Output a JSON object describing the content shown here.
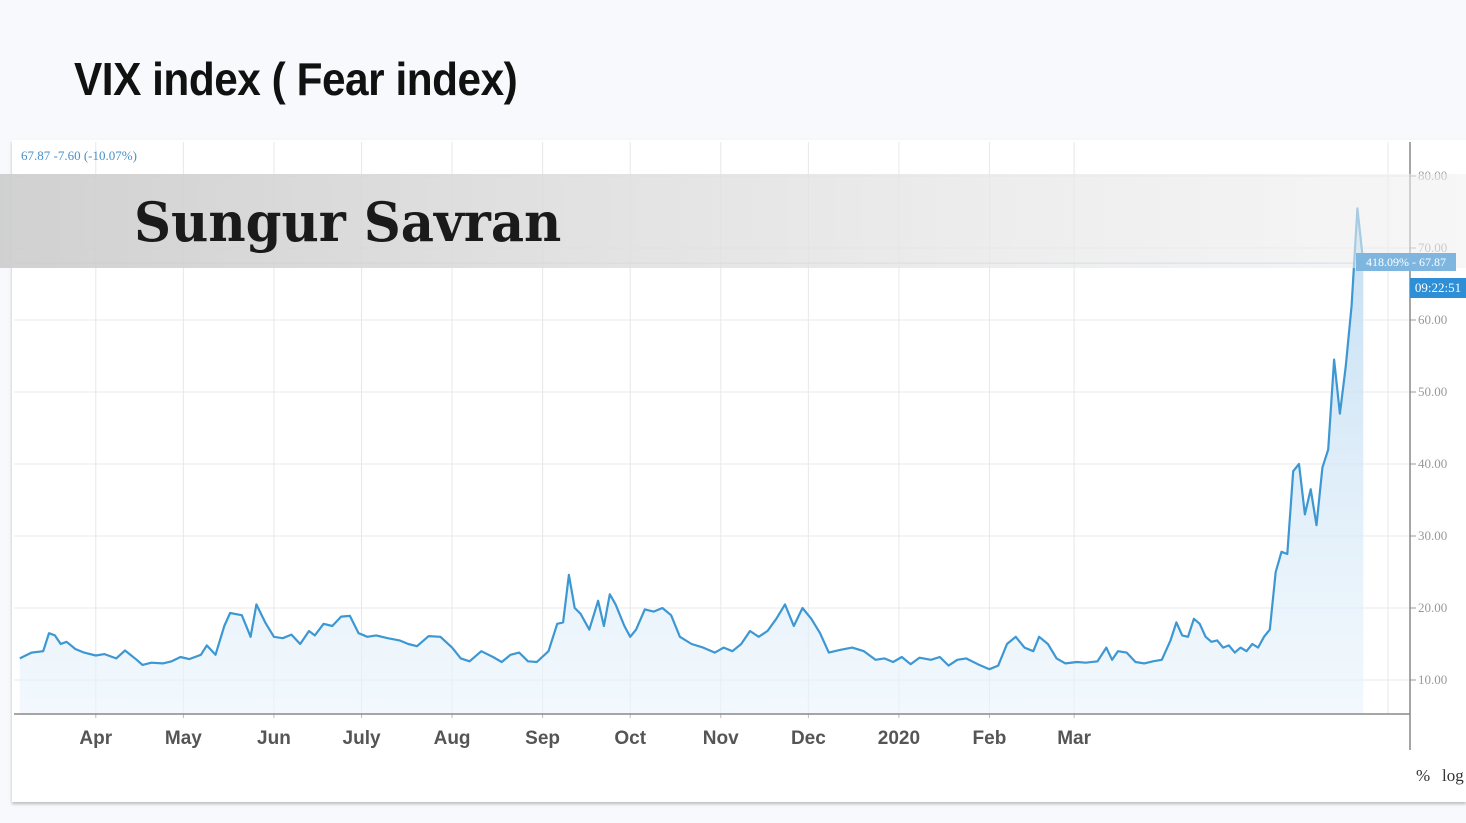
{
  "slide": {
    "title": "VIX index ( Fear index)"
  },
  "watermark": {
    "text": "Sungur Savran"
  },
  "quote": {
    "line": "67.87 -7.60 (-10.07%)"
  },
  "price_tag": {
    "value": "418.09% - 67.87",
    "time": "09:22:51"
  },
  "scale_buttons": {
    "percent": "%",
    "log": "log"
  },
  "colors": {
    "line": "#3d97d3",
    "fill": "#cfe4f5",
    "banner": "#d6d6d6",
    "grid": "#e8e8e8"
  },
  "chart_data": {
    "type": "area",
    "title": "",
    "xlabel": "",
    "ylabel": "",
    "ylim": [
      5,
      85
    ],
    "yticks": [
      "10.00",
      "20.00",
      "30.00",
      "40.00",
      "50.00",
      "60.00",
      "70.00",
      "80.00"
    ],
    "xticks": [
      {
        "label": "Apr",
        "date": "2019-04-01"
      },
      {
        "label": "May",
        "date": "2019-05-01"
      },
      {
        "label": "Jun",
        "date": "2019-06-01"
      },
      {
        "label": "July",
        "date": "2019-07-01"
      },
      {
        "label": "Aug",
        "date": "2019-08-01"
      },
      {
        "label": "Sep",
        "date": "2019-09-01"
      },
      {
        "label": "Oct",
        "date": "2019-10-01"
      },
      {
        "label": "Nov",
        "date": "2019-11-01"
      },
      {
        "label": "Dec",
        "date": "2019-12-01"
      },
      {
        "label": "2020",
        "date": "2020-01-01"
      },
      {
        "label": "Feb",
        "date": "2020-02-01"
      },
      {
        "label": "Mar",
        "date": "2020-03-01"
      }
    ],
    "grid": true,
    "series": [
      {
        "name": "",
        "points": [
          [
            "2019-03-06",
            13.0
          ],
          [
            "2019-03-10",
            13.8
          ],
          [
            "2019-03-14",
            14.0
          ],
          [
            "2019-03-16",
            16.5
          ],
          [
            "2019-03-18",
            16.2
          ],
          [
            "2019-03-20",
            15.0
          ],
          [
            "2019-03-22",
            15.3
          ],
          [
            "2019-03-25",
            14.3
          ],
          [
            "2019-03-28",
            13.8
          ],
          [
            "2019-04-01",
            13.4
          ],
          [
            "2019-04-04",
            13.6
          ],
          [
            "2019-04-08",
            13.0
          ],
          [
            "2019-04-11",
            14.1
          ],
          [
            "2019-04-15",
            12.8
          ],
          [
            "2019-04-17",
            12.1
          ],
          [
            "2019-04-20",
            12.4
          ],
          [
            "2019-04-24",
            12.3
          ],
          [
            "2019-04-27",
            12.6
          ],
          [
            "2019-04-30",
            13.2
          ],
          [
            "2019-05-03",
            12.9
          ],
          [
            "2019-05-07",
            13.5
          ],
          [
            "2019-05-09",
            14.8
          ],
          [
            "2019-05-12",
            13.5
          ],
          [
            "2019-05-15",
            17.5
          ],
          [
            "2019-05-17",
            19.3
          ],
          [
            "2019-05-21",
            19.0
          ],
          [
            "2019-05-24",
            16.0
          ],
          [
            "2019-05-26",
            20.5
          ],
          [
            "2019-05-29",
            18.0
          ],
          [
            "2019-06-01",
            16.0
          ],
          [
            "2019-06-04",
            15.8
          ],
          [
            "2019-06-07",
            16.3
          ],
          [
            "2019-06-10",
            15.0
          ],
          [
            "2019-06-13",
            16.8
          ],
          [
            "2019-06-15",
            16.2
          ],
          [
            "2019-06-18",
            17.8
          ],
          [
            "2019-06-21",
            17.5
          ],
          [
            "2019-06-24",
            18.8
          ],
          [
            "2019-06-27",
            18.9
          ],
          [
            "2019-06-30",
            16.5
          ],
          [
            "2019-07-03",
            16.0
          ],
          [
            "2019-07-06",
            16.2
          ],
          [
            "2019-07-10",
            15.8
          ],
          [
            "2019-07-14",
            15.5
          ],
          [
            "2019-07-17",
            15.0
          ],
          [
            "2019-07-20",
            14.7
          ],
          [
            "2019-07-24",
            16.1
          ],
          [
            "2019-07-28",
            16.0
          ],
          [
            "2019-08-01",
            14.5
          ],
          [
            "2019-08-04",
            13.0
          ],
          [
            "2019-08-07",
            12.6
          ],
          [
            "2019-08-11",
            14.0
          ],
          [
            "2019-08-15",
            13.2
          ],
          [
            "2019-08-18",
            12.5
          ],
          [
            "2019-08-21",
            13.5
          ],
          [
            "2019-08-24",
            13.8
          ],
          [
            "2019-08-27",
            12.6
          ],
          [
            "2019-08-30",
            12.5
          ],
          [
            "2019-09-03",
            14.0
          ],
          [
            "2019-09-06",
            17.8
          ],
          [
            "2019-09-08",
            18.0
          ],
          [
            "2019-09-10",
            24.6
          ],
          [
            "2019-09-12",
            20.0
          ],
          [
            "2019-09-14",
            19.2
          ],
          [
            "2019-09-17",
            17.0
          ],
          [
            "2019-09-20",
            21.0
          ],
          [
            "2019-09-22",
            17.5
          ],
          [
            "2019-09-24",
            21.9
          ],
          [
            "2019-09-26",
            20.5
          ],
          [
            "2019-09-29",
            17.5
          ],
          [
            "2019-10-01",
            16.0
          ],
          [
            "2019-10-03",
            17.0
          ],
          [
            "2019-10-06",
            19.8
          ],
          [
            "2019-10-09",
            19.5
          ],
          [
            "2019-10-12",
            20.0
          ],
          [
            "2019-10-15",
            19.0
          ],
          [
            "2019-10-18",
            16.0
          ],
          [
            "2019-10-22",
            15.0
          ],
          [
            "2019-10-26",
            14.5
          ],
          [
            "2019-10-30",
            13.8
          ],
          [
            "2019-11-02",
            14.5
          ],
          [
            "2019-11-05",
            14.0
          ],
          [
            "2019-11-08",
            15.0
          ],
          [
            "2019-11-11",
            16.8
          ],
          [
            "2019-11-14",
            16.0
          ],
          [
            "2019-11-17",
            16.8
          ],
          [
            "2019-11-20",
            18.5
          ],
          [
            "2019-11-23",
            20.5
          ],
          [
            "2019-11-26",
            17.5
          ],
          [
            "2019-11-29",
            20.0
          ],
          [
            "2019-12-02",
            18.5
          ],
          [
            "2019-12-05",
            16.5
          ],
          [
            "2019-12-08",
            13.8
          ],
          [
            "2019-12-12",
            14.2
          ],
          [
            "2019-12-16",
            14.5
          ],
          [
            "2019-12-20",
            14.0
          ],
          [
            "2019-12-24",
            12.8
          ],
          [
            "2019-12-27",
            13.0
          ],
          [
            "2019-12-30",
            12.5
          ],
          [
            "2020-01-02",
            13.2
          ],
          [
            "2020-01-05",
            12.2
          ],
          [
            "2020-01-08",
            13.1
          ],
          [
            "2020-01-12",
            12.8
          ],
          [
            "2020-01-15",
            13.2
          ],
          [
            "2020-01-18",
            12.0
          ],
          [
            "2020-01-21",
            12.8
          ],
          [
            "2020-01-24",
            13.0
          ],
          [
            "2020-01-28",
            12.2
          ],
          [
            "2020-02-01",
            11.5
          ],
          [
            "2020-02-04",
            12.0
          ],
          [
            "2020-02-07",
            15.0
          ],
          [
            "2020-02-10",
            16.0
          ],
          [
            "2020-02-13",
            14.5
          ],
          [
            "2020-02-16",
            14.0
          ],
          [
            "2020-02-18",
            16.0
          ],
          [
            "2020-02-21",
            15.0
          ],
          [
            "2020-02-24",
            13.0
          ],
          [
            "2020-02-27",
            12.3
          ],
          [
            "2020-03-02",
            12.5
          ],
          [
            "2020-03-05",
            12.4
          ],
          [
            "2020-03-09",
            12.6
          ],
          [
            "2020-03-12",
            14.5
          ],
          [
            "2020-03-14",
            12.8
          ],
          [
            "2020-03-16",
            14.0
          ],
          [
            "2020-03-19",
            13.8
          ],
          [
            "2020-03-22",
            12.5
          ],
          [
            "2020-03-25",
            12.3
          ],
          [
            "2020-03-28",
            12.6
          ],
          [
            "2020-03-31",
            12.8
          ],
          [
            "2020-04-03",
            15.5
          ],
          [
            "2020-04-05",
            18.0
          ],
          [
            "2020-04-07",
            16.2
          ],
          [
            "2020-04-09",
            16.0
          ],
          [
            "2020-04-11",
            18.5
          ],
          [
            "2020-04-13",
            17.8
          ],
          [
            "2020-04-15",
            16.0
          ],
          [
            "2020-04-17",
            15.3
          ],
          [
            "2020-04-19",
            15.5
          ],
          [
            "2020-04-21",
            14.5
          ],
          [
            "2020-04-23",
            14.8
          ],
          [
            "2020-04-25",
            13.8
          ],
          [
            "2020-04-27",
            14.5
          ],
          [
            "2020-04-29",
            14.0
          ],
          [
            "2020-05-01",
            15.0
          ],
          [
            "2020-05-03",
            14.5
          ],
          [
            "2020-05-05",
            16.0
          ],
          [
            "2020-05-07",
            17.0
          ],
          [
            "2020-05-09",
            25.0
          ],
          [
            "2020-05-11",
            27.8
          ],
          [
            "2020-05-13",
            27.5
          ],
          [
            "2020-05-15",
            39.0
          ],
          [
            "2020-05-17",
            40.0
          ],
          [
            "2020-05-19",
            33.0
          ],
          [
            "2020-05-21",
            36.5
          ],
          [
            "2020-05-23",
            31.5
          ],
          [
            "2020-05-25",
            39.5
          ],
          [
            "2020-05-27",
            42.0
          ],
          [
            "2020-05-29",
            54.5
          ],
          [
            "2020-05-31",
            47.0
          ],
          [
            "2020-06-02",
            53.5
          ],
          [
            "2020-06-04",
            62.0
          ],
          [
            "2020-06-06",
            75.5
          ],
          [
            "2020-06-08",
            67.9
          ]
        ]
      }
    ]
  }
}
